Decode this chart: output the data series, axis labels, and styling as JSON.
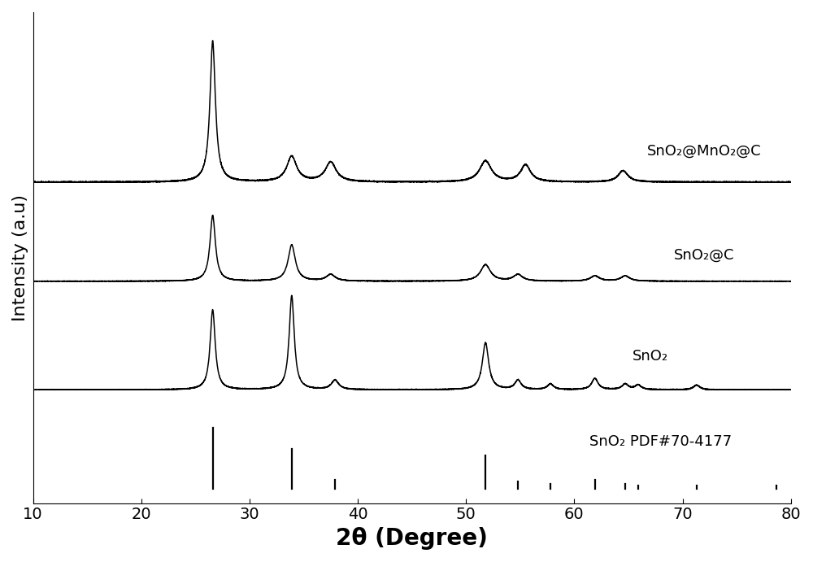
{
  "title": "",
  "xlabel": "2θ (Degree)",
  "ylabel": "Intensity (a.u)",
  "xlim": [
    10,
    80
  ],
  "xticks": [
    10,
    20,
    30,
    40,
    50,
    60,
    70,
    80
  ],
  "background_color": "#ffffff",
  "line_color": "#000000",
  "xlabel_fontsize": 20,
  "ylabel_fontsize": 16,
  "tick_fontsize": 14,
  "label_fontsize": 13,
  "pdf_peaks": [
    26.6,
    33.9,
    37.9,
    51.8,
    54.8,
    57.8,
    61.9,
    64.7,
    65.9,
    71.3,
    78.7
  ],
  "pdf_heights": [
    1.0,
    0.65,
    0.15,
    0.55,
    0.12,
    0.08,
    0.15,
    0.08,
    0.06,
    0.06,
    0.06
  ],
  "labels": {
    "sno2_mno2_c": "SnO₂@MnO₂@C",
    "sno2_c": "SnO₂@C",
    "sno2": "SnO₂",
    "pdf": "SnO₂ PDF#70-4177"
  },
  "baseline_sno2_mno2_c": 0.68,
  "baseline_sno2_c": 0.47,
  "baseline_sno2": 0.24,
  "baseline_pdf": 0.03,
  "peak_scale_sno2_mno2_c": 0.3,
  "peak_scale_sno2_c": 0.14,
  "peak_scale_sno2": 0.2,
  "pdf_bar_scale": 0.13,
  "noise_level": 0.0018
}
